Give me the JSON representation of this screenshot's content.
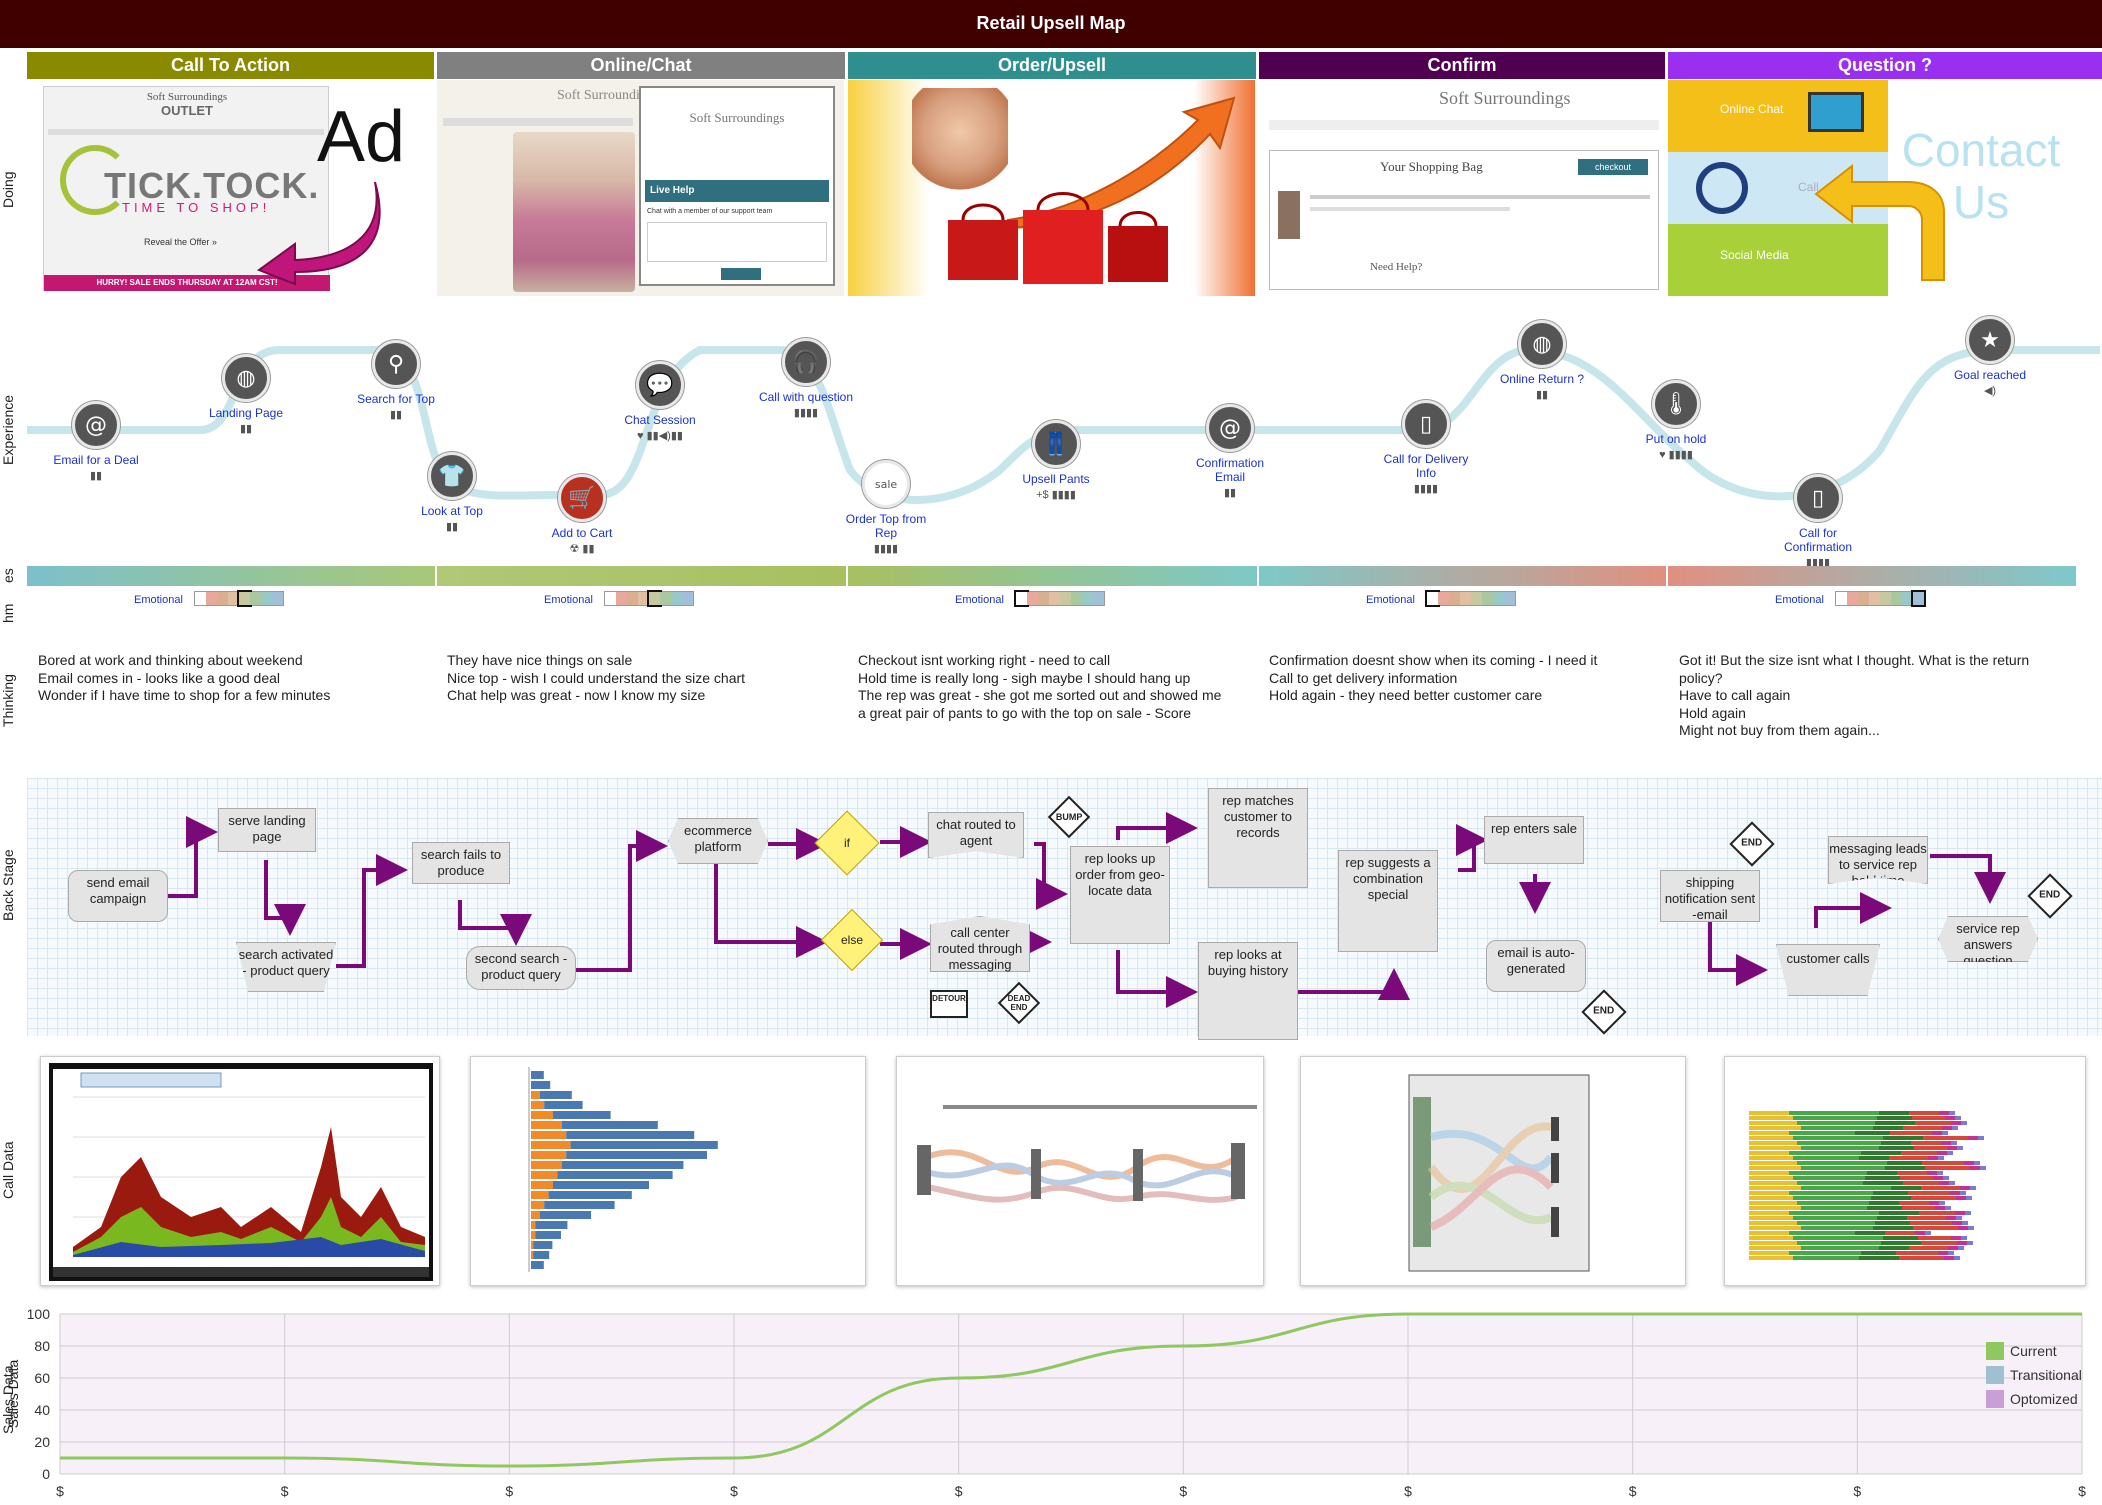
{
  "title": "Retail Upsell Map",
  "stages": [
    {
      "name": "Call To Action",
      "color": "#8a8a00"
    },
    {
      "name": "Online/Chat",
      "color": "#808080"
    },
    {
      "name": "Order/Upsell",
      "color": "#2f8f8f"
    },
    {
      "name": "Confirm",
      "color": "#500050"
    },
    {
      "name": "Question ?",
      "color": "#9b2ff0"
    }
  ],
  "rows": {
    "doing": "Doing",
    "experience": "Experience",
    "emotional_cut": "es",
    "hm_cut": "hm",
    "thinking": "Thinking",
    "backstage": "Back Stage",
    "calldata": "Call Data",
    "salesdata": "Sales Data"
  },
  "doing": {
    "ad_text": "Ad",
    "outlet_brand": "Soft Surroundings",
    "outlet_word": "OUTLET",
    "tick_tock": "TICK.TOCK.",
    "time_to_shop": "TIME TO SHOP!",
    "reveal_offer": "Reveal the Offer »",
    "hurry_text": "HURRY! SALE ENDS THURSDAY AT 12AM CST!",
    "chat_brand": "Soft Surroundings",
    "live_help": "Live Help",
    "live_help_sub": "Chat with a member of our support team",
    "order_sale_icon": "sale",
    "confirm_brand": "Soft Surroundings",
    "shopping_bag": "Your Shopping Bag",
    "checkout_btn": "checkout",
    "need_help": "Need Help?",
    "online_chat": "Online Chat",
    "call": "Call",
    "social_media": "Social Media",
    "contact_us": "Contact Us"
  },
  "experience": [
    {
      "label": "Email for a Deal",
      "icon": "at-icon",
      "glyph": "@",
      "sub": "▮▮"
    },
    {
      "label": "Landing Page",
      "icon": "globe-icon",
      "glyph": "◍",
      "sub": "▮▮"
    },
    {
      "label": "Search for Top",
      "icon": "search-icon",
      "glyph": "⚲",
      "sub": "▮▮"
    },
    {
      "label": "Look at Top",
      "icon": "shirt-icon",
      "glyph": "👕",
      "sub": "▮▮"
    },
    {
      "label": "Add to Cart",
      "icon": "cart-icon",
      "glyph": "🛒",
      "sub": "☢ ▮▮"
    },
    {
      "label": "Chat Session",
      "icon": "chat-icon",
      "glyph": "💬",
      "sub": "♥ ▮▮◀)▮▮"
    },
    {
      "label": "Call with question",
      "icon": "headset-icon",
      "glyph": "🎧",
      "sub": "▮▮▮▮"
    },
    {
      "label": "Order Top from Rep",
      "icon": "sale-tag-icon",
      "glyph": "sale",
      "sub": "▮▮▮▮"
    },
    {
      "label": "Upsell Pants",
      "icon": "pants-icon",
      "glyph": "👖",
      "sub": "+$ ▮▮▮▮"
    },
    {
      "label": "Confirmation Email",
      "icon": "email-at-icon",
      "glyph": "@",
      "sub": "▮▮"
    },
    {
      "label": "Call for Delivery Info",
      "icon": "phone-icon",
      "glyph": "▯",
      "sub": "▮▮▮▮"
    },
    {
      "label": "Online Return ?",
      "icon": "web-phone-icon",
      "glyph": "◍",
      "sub": "▮▮"
    },
    {
      "label": "Put on hold",
      "icon": "thermometer-icon",
      "glyph": "🌡",
      "sub": "♥ ▮▮▮▮"
    },
    {
      "label": "Call for Confirmation",
      "icon": "mobile-icon",
      "glyph": "▯",
      "sub": "▮▮▮▮"
    },
    {
      "label": "Goal reached",
      "icon": "star-icon",
      "glyph": "★",
      "sub": "◀)"
    }
  ],
  "emotional": {
    "label": "Emotional",
    "swatches": [
      "#ffffff",
      "#e8a89a",
      "#d8b090",
      "#e0c0a0",
      "#c8c8a0",
      "#a8c8a0",
      "#98c8c8",
      "#a0c0d8"
    ],
    "selected": [
      4,
      4,
      0,
      0,
      7
    ],
    "bar_gradients": [
      [
        "#7cc0cc",
        "#a8c878"
      ],
      [
        "#b0c878",
        "#a8c060"
      ],
      [
        "#a8c060",
        "#7ec8c8"
      ],
      [
        "#7ec8c8",
        "#e09080"
      ],
      [
        "#e09080",
        "#7ec8cc"
      ]
    ]
  },
  "thinking": [
    "Bored at work and thinking about weekend\nEmail comes in - looks like a good deal\nWonder if I have time to shop for a few minutes",
    "They have nice things on sale\nNice top - wish I could understand the size chart\nChat help was great - now I know my size",
    "Checkout isnt working right - need to call\nHold time is really long - sigh maybe I should hang up\nThe rep was great - she got me sorted out and showed me\na great pair of pants to go with the top on sale - Score",
    "Confirmation doesnt show when its coming - I need it\nCall to get delivery information\nHold again - they need better customer care",
    "Got it! But the size isnt what I thought. What is the return\npolicy?\nHave to call again\nHold again\nMight not buy from them again..."
  ],
  "backstage": {
    "send_email": "send email campaign",
    "serve_landing": "serve landing page",
    "search_activated": "search activated - product query",
    "search_fails": "search fails to produce",
    "second_search": "second search - product query",
    "ecommerce": "ecommerce platform",
    "if": "if",
    "else": "else",
    "chat_routed": "chat routed to agent",
    "call_center": "call center routed through messaging",
    "bump": "BUMP",
    "detour": "DETOUR",
    "dead_end": "DEAD END",
    "rep_geo": "rep looks up order from geo-locate data",
    "rep_matches": "rep matches customer to records",
    "rep_history": "rep looks at buying history",
    "rep_suggests": "rep suggests a combination special",
    "rep_enters": "rep enters sale",
    "email_auto": "email is auto-generated",
    "end": "END",
    "shipping": "shipping notification sent -email",
    "customer_calls": "customer calls",
    "messaging": "messaging leads to service rep hold time",
    "service_rep": "service rep answers question"
  },
  "call_cards": [
    {
      "name": "stacked-area-chart"
    },
    {
      "name": "horizontal-bar-chart"
    },
    {
      "name": "flow-diagram"
    },
    {
      "name": "sankey-chart"
    },
    {
      "name": "stacked-bar-chart"
    }
  ],
  "chart_data": {
    "type": "line",
    "x": [
      "$",
      "$",
      "$",
      "$",
      "$",
      "$",
      "$",
      "$",
      "$",
      "$"
    ],
    "ylim": [
      0,
      100
    ],
    "yticks": [
      0,
      20,
      40,
      60,
      80,
      100
    ],
    "grid": true,
    "ylabel": "Sales Data",
    "series": [
      {
        "name": "Current",
        "color": "#90c860",
        "values": [
          10,
          10,
          5,
          10,
          60,
          80,
          100,
          100,
          100,
          100
        ]
      }
    ],
    "legend": [
      {
        "name": "Current",
        "color": "#90c860"
      },
      {
        "name": "Transitional",
        "color": "#9ec0d0"
      },
      {
        "name": "Optomized",
        "color": "#c8a0d8"
      }
    ],
    "legend_position": "right"
  }
}
